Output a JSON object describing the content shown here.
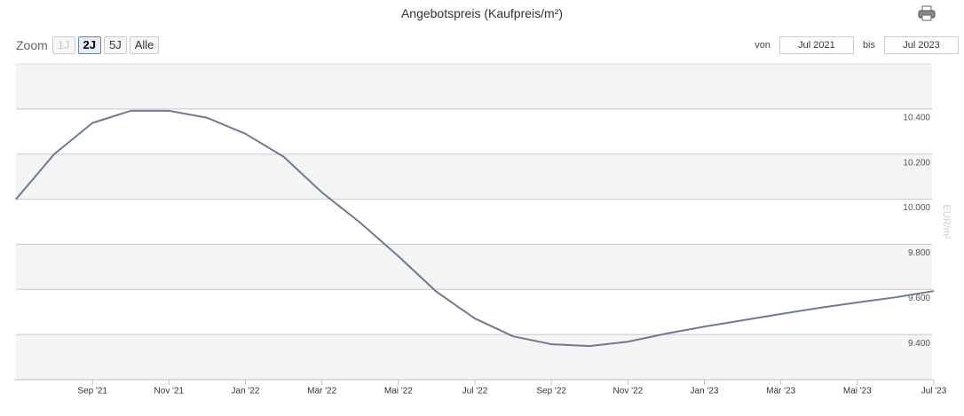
{
  "header": {
    "title": "Angebotspreis (Kaufpreis/m²)"
  },
  "zoom": {
    "label": "Zoom",
    "buttons": [
      "1J",
      "2J",
      "5J",
      "Alle"
    ],
    "selected": "2J",
    "disabled": [
      "1J"
    ]
  },
  "range": {
    "from_label": "von",
    "from": "Jul 2021",
    "to_label": "bis",
    "to": "Jul 2023"
  },
  "chart_data": {
    "type": "line",
    "y_axis_title": "EUR/m²",
    "color": "#6e7b8f",
    "grid": true,
    "x": [
      "Jul 2021",
      "Aug 2021",
      "Sep 2021",
      "Okt 2021",
      "Nov 2021",
      "Dez 2021",
      "Jan 2022",
      "Feb 2022",
      "Mär 2022",
      "Apr 2022",
      "Mai 2022",
      "Jun 2022",
      "Jul 2022",
      "Aug 2022",
      "Sep 2022",
      "Okt 2022",
      "Nov 2022",
      "Dez 2022",
      "Jan 2023",
      "Feb 2023",
      "Mär 2023",
      "Apr 2023",
      "Mai 2023",
      "Jun 2023",
      "Jul 2023"
    ],
    "values": [
      10000,
      10200,
      10338,
      10392,
      10392,
      10361,
      10290,
      10188,
      10030,
      9896,
      9747,
      9589,
      9471,
      9392,
      9357,
      9349,
      9368,
      9404,
      9435,
      9463,
      9491,
      9518,
      9542,
      9565,
      9593
    ],
    "ylim": [
      9200,
      10600
    ],
    "yticks": [
      {
        "value": 9400,
        "label": "9.400"
      },
      {
        "value": 9600,
        "label": "9.600"
      },
      {
        "value": 9800,
        "label": "9.800"
      },
      {
        "value": 10000,
        "label": "10.000"
      },
      {
        "value": 10200,
        "label": "10.200"
      },
      {
        "value": 10400,
        "label": "10.400"
      }
    ],
    "xticks": [
      {
        "value": "Sep 2021",
        "label": "Sep '21"
      },
      {
        "value": "Nov 2021",
        "label": "Nov '21"
      },
      {
        "value": "Jan 2022",
        "label": "Jan '22"
      },
      {
        "value": "Mär 2022",
        "label": "Mär '22"
      },
      {
        "value": "Mai 2022",
        "label": "Mai '22"
      },
      {
        "value": "Jul 2022",
        "label": "Jul '22"
      },
      {
        "value": "Sep 2022",
        "label": "Sep '22"
      },
      {
        "value": "Nov 2022",
        "label": "Nov '22"
      },
      {
        "value": "Jan 2023",
        "label": "Jan '23"
      },
      {
        "value": "Mär 2023",
        "label": "Mär '23"
      },
      {
        "value": "Mai 2023",
        "label": "Mai '23"
      },
      {
        "value": "Jul 2023",
        "label": "Jul '23"
      }
    ]
  }
}
